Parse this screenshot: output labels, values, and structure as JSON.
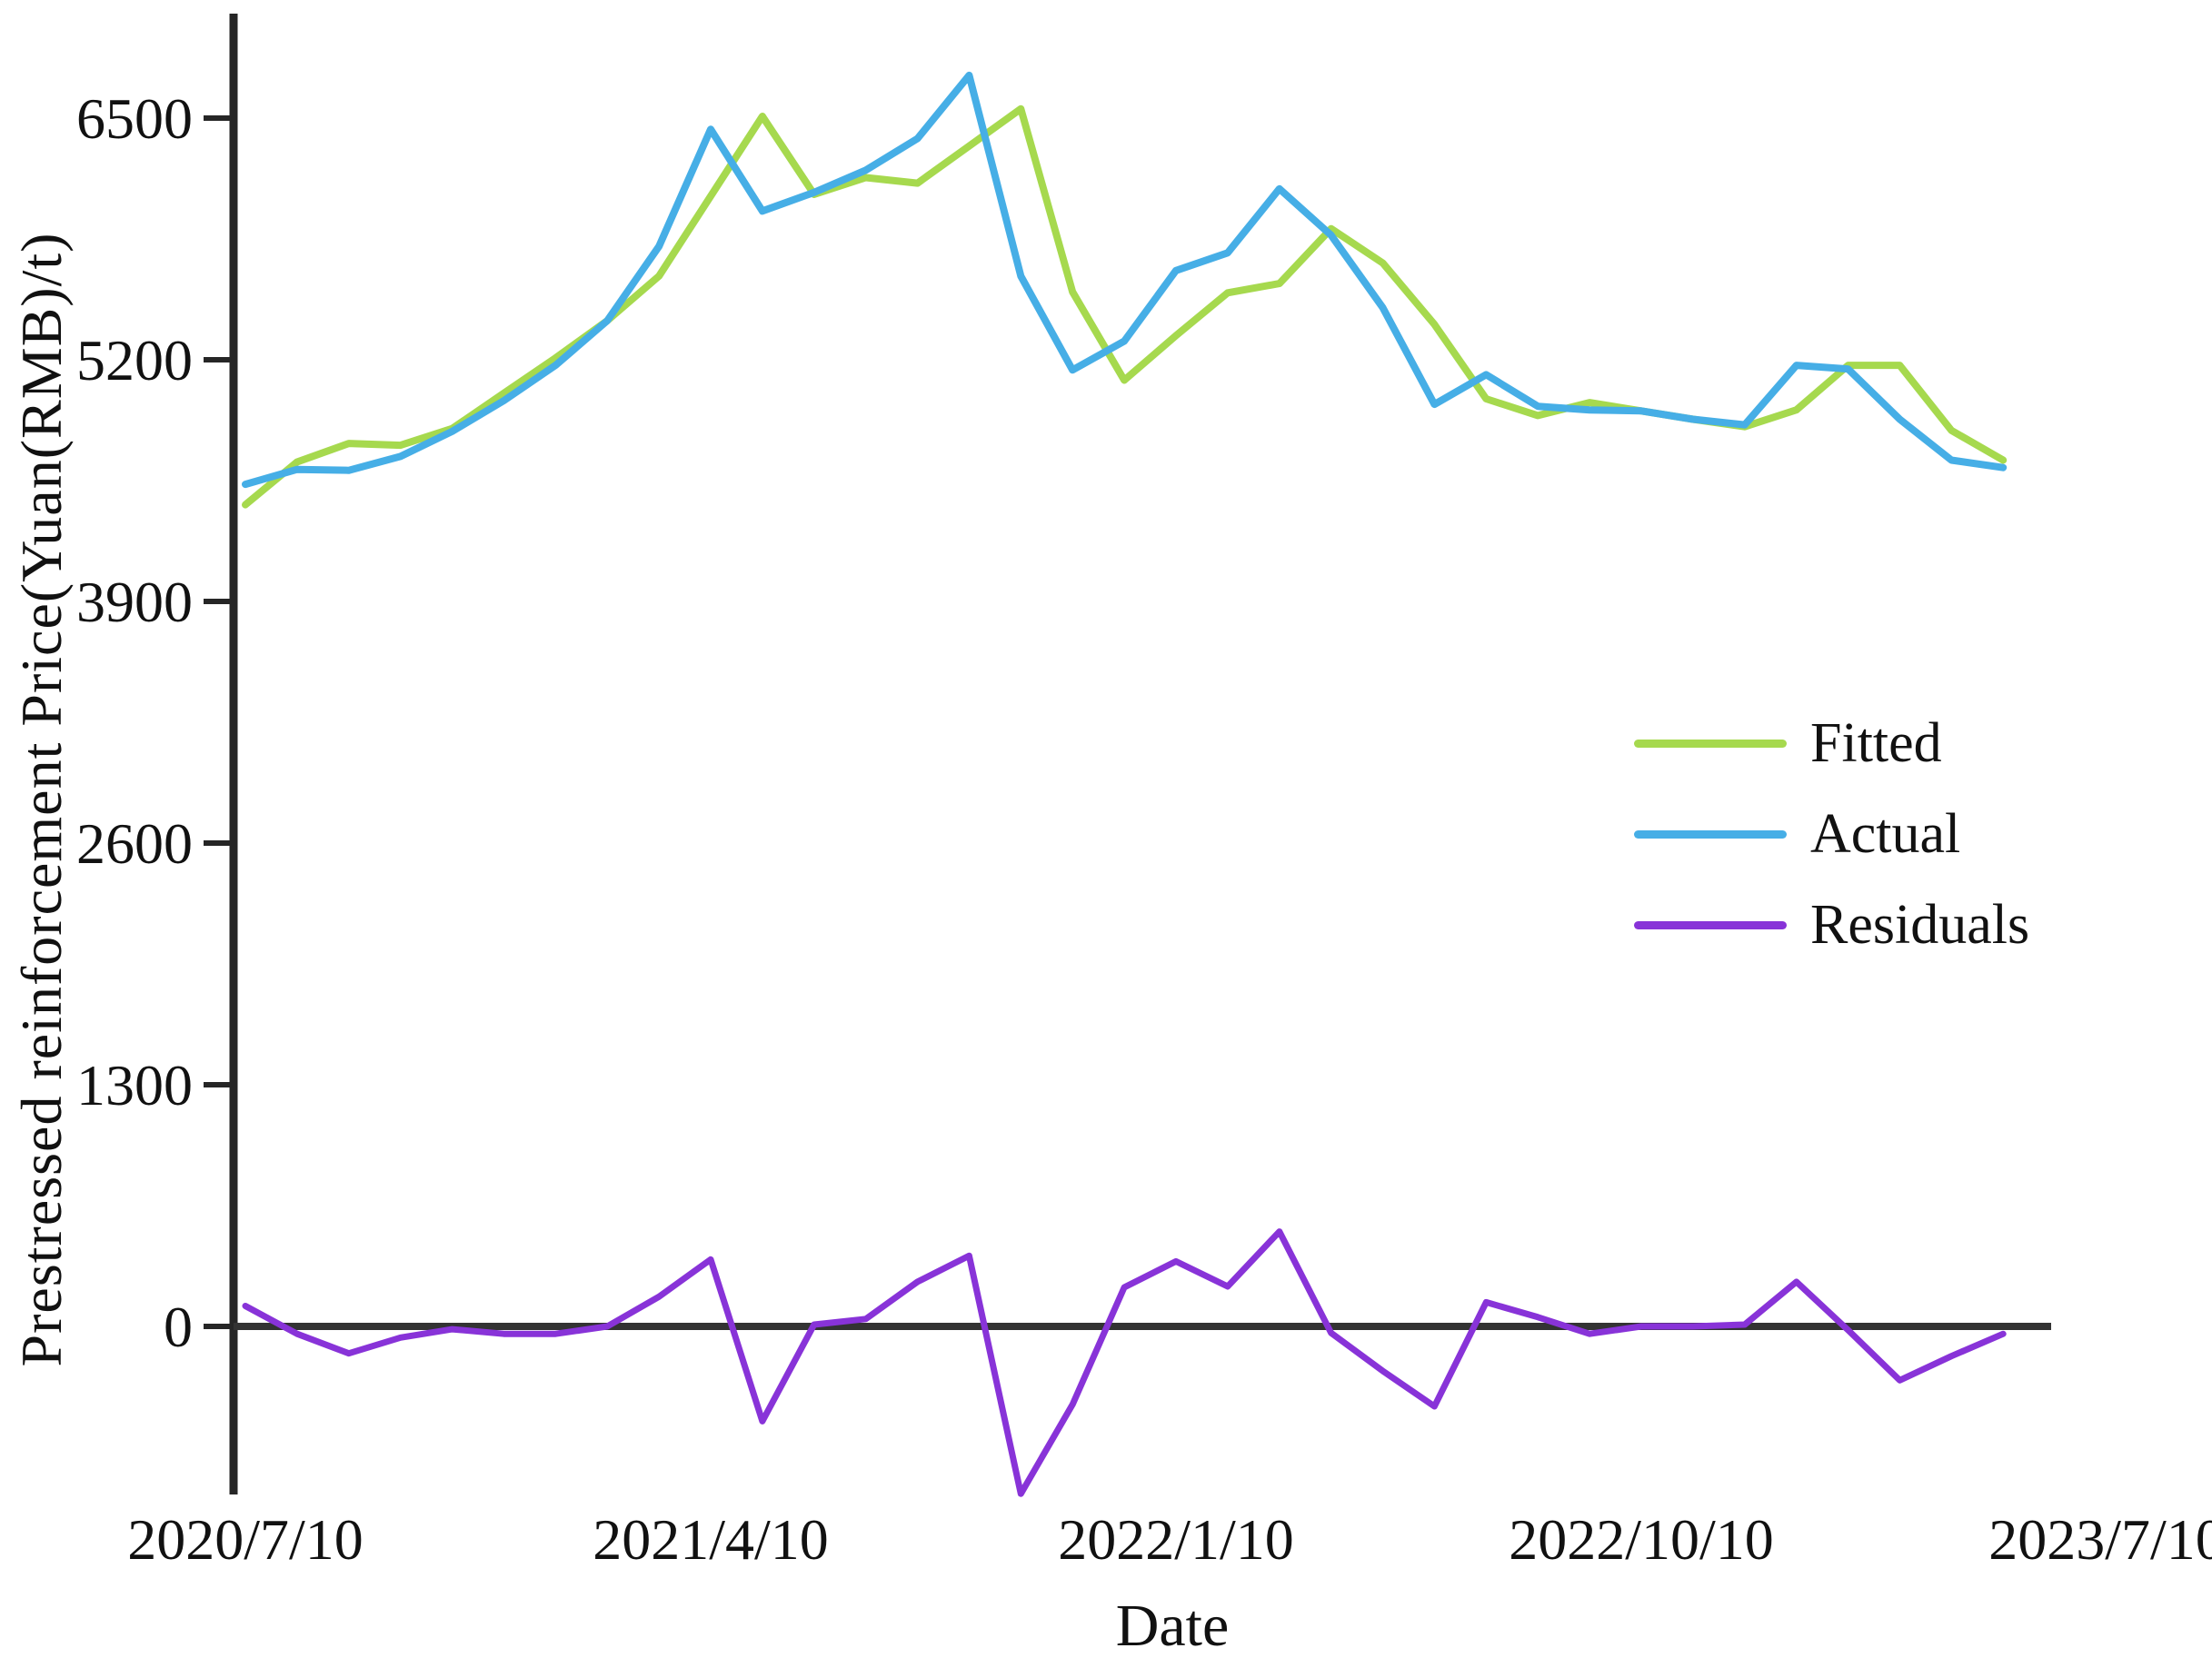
{
  "figure": {
    "background": "#ffffff"
  },
  "axes": {
    "y_label": "Prestressed reinforcement Price(Yuan(RMB)/t)",
    "x_label": "Date",
    "axis_color": "#262626",
    "zero_line_color": "#333333",
    "tick_label_color": "#111111"
  },
  "legend": {
    "entries": [
      "Fitted",
      "Actual",
      "Residuals"
    ]
  },
  "chart_data": {
    "type": "line",
    "title": "",
    "xlabel": "Date",
    "ylabel": "Prestressed reinforcement Price(Yuan(RMB)/t)",
    "ylim": [
      -1750,
      6900
    ],
    "grid": false,
    "legend_position": "center-right",
    "y_ticks": [
      6500,
      5200,
      3900,
      2600,
      1300,
      0
    ],
    "x_tick_labels": [
      {
        "label": "2020/7/10",
        "month_index": 0
      },
      {
        "label": "2021/4/10",
        "month_index": 9
      },
      {
        "label": "2022/1/10",
        "month_index": 18
      },
      {
        "label": "2022/10/10",
        "month_index": 27
      },
      {
        "label": "2023/7/10",
        "month_index": 36
      }
    ],
    "dates": [
      "2020/7/10",
      "2020/8/10",
      "2020/9/10",
      "2020/10/10",
      "2020/11/10",
      "2020/12/10",
      "2021/1/10",
      "2021/2/10",
      "2021/3/10",
      "2021/4/10",
      "2021/5/10",
      "2021/6/10",
      "2021/7/10",
      "2021/8/10",
      "2021/9/10",
      "2021/10/10",
      "2021/11/10",
      "2021/12/10",
      "2022/1/10",
      "2022/2/10",
      "2022/3/10",
      "2022/4/10",
      "2022/5/10",
      "2022/6/10",
      "2022/7/10",
      "2022/8/10",
      "2022/9/10",
      "2022/10/10",
      "2022/11/10",
      "2022/12/10",
      "2023/1/10",
      "2023/2/10",
      "2023/3/10",
      "2023/4/10",
      "2023/5/10"
    ],
    "series": [
      {
        "name": "Fitted",
        "color": "#a6d94e",
        "values": [
          4420,
          4650,
          4750,
          4740,
          4830,
          5020,
          5210,
          5410,
          5650,
          6080,
          6510,
          6090,
          6180,
          6150,
          6350,
          6550,
          5565,
          5090,
          5330,
          5560,
          5610,
          5905,
          5720,
          5390,
          4990,
          4900,
          4970,
          4925,
          4880,
          4840,
          4930,
          5170,
          5170,
          4820,
          4660
        ]
      },
      {
        "name": "Actual",
        "color": "#46aee6",
        "values": [
          4530,
          4610,
          4605,
          4680,
          4815,
          4980,
          5170,
          5410,
          5810,
          6440,
          6000,
          6100,
          6220,
          6390,
          6730,
          5650,
          5145,
          5300,
          5680,
          5775,
          6120,
          5870,
          5480,
          4960,
          5120,
          4950,
          4930,
          4925,
          4880,
          4850,
          5170,
          5150,
          4880,
          4660,
          4620
        ]
      },
      {
        "name": "Residuals",
        "color": "#8833d8",
        "values": [
          110,
          -40,
          -145,
          -60,
          -15,
          -40,
          -40,
          0,
          160,
          360,
          -510,
          10,
          40,
          240,
          380,
          -900,
          -420,
          210,
          350,
          215,
          510,
          -35,
          -240,
          -430,
          130,
          50,
          -40,
          0,
          0,
          10,
          240,
          -20,
          -290,
          -160,
          -40
        ]
      }
    ],
    "zero_baseline": true
  }
}
